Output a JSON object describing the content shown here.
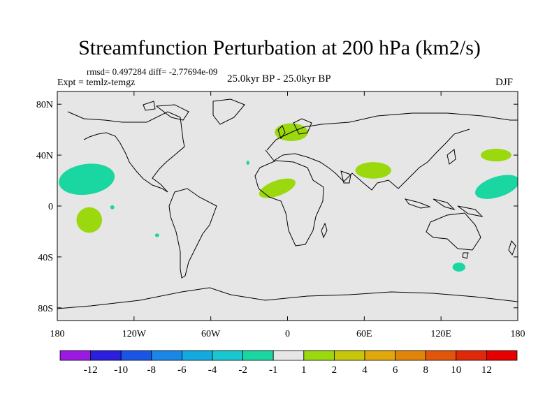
{
  "header": {
    "title": "Streamfunction Perturbation at 200 hPa (km2/s)",
    "stats": "rmsd= 0.497284  diff= -2.77694e-09",
    "experiment": "Expt = temlz-temgz",
    "period": "25.0kyr BP - 25.0kyr BP",
    "season": "DJF"
  },
  "chart_data": {
    "type": "contour-map",
    "title": "Streamfunction Perturbation at 200 hPa (km2/s)",
    "projection": "cylindrical equidistant",
    "x_range": [
      -180,
      180
    ],
    "y_range": [
      -90,
      90
    ],
    "x_ticks": [
      {
        "value": -180,
        "label": "180"
      },
      {
        "value": -120,
        "label": "120W"
      },
      {
        "value": -60,
        "label": "60W"
      },
      {
        "value": 0,
        "label": "0"
      },
      {
        "value": 60,
        "label": "60E"
      },
      {
        "value": 120,
        "label": "120E"
      },
      {
        "value": 180,
        "label": "180"
      }
    ],
    "y_ticks": [
      {
        "value": 80,
        "label": "80N"
      },
      {
        "value": 40,
        "label": "40N"
      },
      {
        "value": 0,
        "label": "0"
      },
      {
        "value": -40,
        "label": "40S"
      },
      {
        "value": -80,
        "label": "80S"
      }
    ],
    "background_color": "#e6e6e6",
    "colorbar": {
      "boundaries": [
        "-12",
        "-10",
        "-8",
        "-6",
        "-4",
        "-2",
        "-1",
        "1",
        "2",
        "4",
        "6",
        "8",
        "10",
        "12"
      ],
      "colors": [
        "#9b1ae0",
        "#2a1fdc",
        "#1a55e6",
        "#1a87e6",
        "#15aadf",
        "#18c7cf",
        "#1ad6a1",
        "#e6e6e6",
        "#9bd80e",
        "#c6c60a",
        "#e0a80a",
        "#e0840a",
        "#e0560a",
        "#e0280a",
        "#e60000"
      ]
    },
    "regions": [
      {
        "name": "north-pacific-negative",
        "lon": -157,
        "lat": 21,
        "rlon": 22,
        "rlat": 12,
        "rot": -8,
        "color": "#1ad6a1"
      },
      {
        "name": "south-pacific-positive",
        "lon": -155,
        "lat": -11,
        "rlon": 10,
        "rlat": 10,
        "rot": -40,
        "color": "#9bd80e"
      },
      {
        "name": "pacific-small-negative",
        "lon": -137,
        "lat": -1,
        "rlon": 1.6,
        "rlat": 1.6,
        "rot": 0,
        "color": "#1ad6a1"
      },
      {
        "name": "south-pacific-small-negative",
        "lon": -102,
        "lat": -23,
        "rlon": 1.6,
        "rlat": 1.4,
        "rot": 0,
        "color": "#1ad6a1"
      },
      {
        "name": "atlantic-small-negative",
        "lon": -31,
        "lat": 34,
        "rlon": 1.2,
        "rlat": 1.6,
        "rot": 0,
        "color": "#1ad6a1"
      },
      {
        "name": "europe-positive",
        "lon": 3,
        "lat": 58,
        "rlon": 13,
        "rlat": 7,
        "rot": 0,
        "color": "#9bd80e"
      },
      {
        "name": "west-africa-positive",
        "lon": -8,
        "lat": 14,
        "rlon": 15,
        "rlat": 6,
        "rot": -20,
        "color": "#9bd80e"
      },
      {
        "name": "south-asia-positive",
        "lon": 67,
        "lat": 28,
        "rlon": 14,
        "rlat": 6.5,
        "rot": 0,
        "color": "#9bd80e"
      },
      {
        "name": "east-asia-positive",
        "lon": 163,
        "lat": 40,
        "rlon": 12,
        "rlat": 5,
        "rot": 0,
        "color": "#9bd80e"
      },
      {
        "name": "west-pacific-negative",
        "lon": 164,
        "lat": 15,
        "rlon": 18,
        "rlat": 8,
        "rot": -18,
        "color": "#1ad6a1"
      },
      {
        "name": "southern-ocean-negative",
        "lon": 134,
        "lat": -48,
        "rlon": 5,
        "rlat": 3.5,
        "rot": 0,
        "color": "#1ad6a1"
      }
    ]
  }
}
